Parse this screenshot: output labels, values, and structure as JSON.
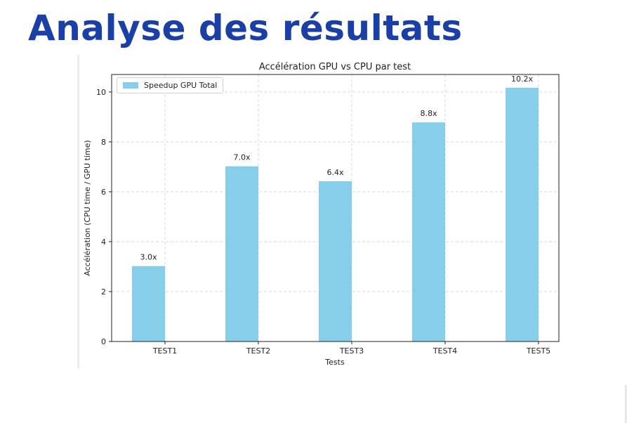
{
  "slide": {
    "title": "Analyse des résultats"
  },
  "chart_data": {
    "type": "bar",
    "title": "Accélération GPU vs CPU par test",
    "xlabel": "Tests",
    "ylabel": "Accélération (CPU time / GPU time)",
    "categories": [
      "TEST1",
      "TEST2",
      "TEST3",
      "TEST4",
      "TEST5"
    ],
    "series": [
      {
        "name": "Speedup GPU Total",
        "values": [
          3.02,
          7.02,
          6.42,
          8.78,
          10.17
        ],
        "data_labels": [
          "3.0x",
          "7.0x",
          "6.4x",
          "8.8x",
          "10.2x"
        ],
        "color": "#87ceeb"
      }
    ],
    "yticks": [
      "0",
      "2",
      "4",
      "6",
      "8",
      "10"
    ],
    "ylim": [
      0,
      10.7
    ],
    "grid": true,
    "legend": "top-left"
  }
}
